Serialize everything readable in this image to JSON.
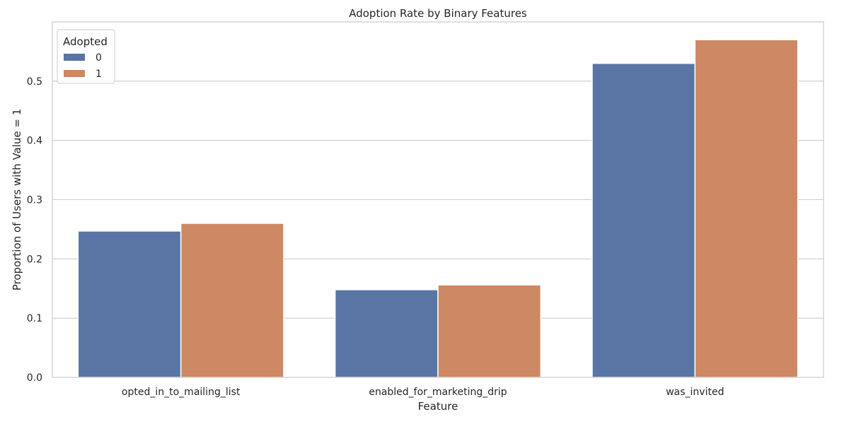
{
  "chart_data": {
    "type": "bar",
    "title": "Adoption Rate by Binary Features",
    "xlabel": "Feature",
    "ylabel": "Proportion of Users with Value = 1",
    "categories": [
      "opted_in_to_mailing_list",
      "enabled_for_marketing_drip",
      "was_invited"
    ],
    "series": [
      {
        "name": "0",
        "color": "#5875a4",
        "values": [
          0.247,
          0.148,
          0.53
        ]
      },
      {
        "name": "1",
        "color": "#cc8963",
        "values": [
          0.26,
          0.156,
          0.57
        ]
      }
    ],
    "ylim": [
      0,
      0.6
    ],
    "yticks": [
      0.0,
      0.1,
      0.2,
      0.3,
      0.4,
      0.5
    ],
    "ytick_labels": [
      "0.0",
      "0.1",
      "0.2",
      "0.3",
      "0.4",
      "0.5"
    ],
    "legend": {
      "title": "Adopted",
      "placement": "top-left"
    },
    "grid": "y"
  }
}
